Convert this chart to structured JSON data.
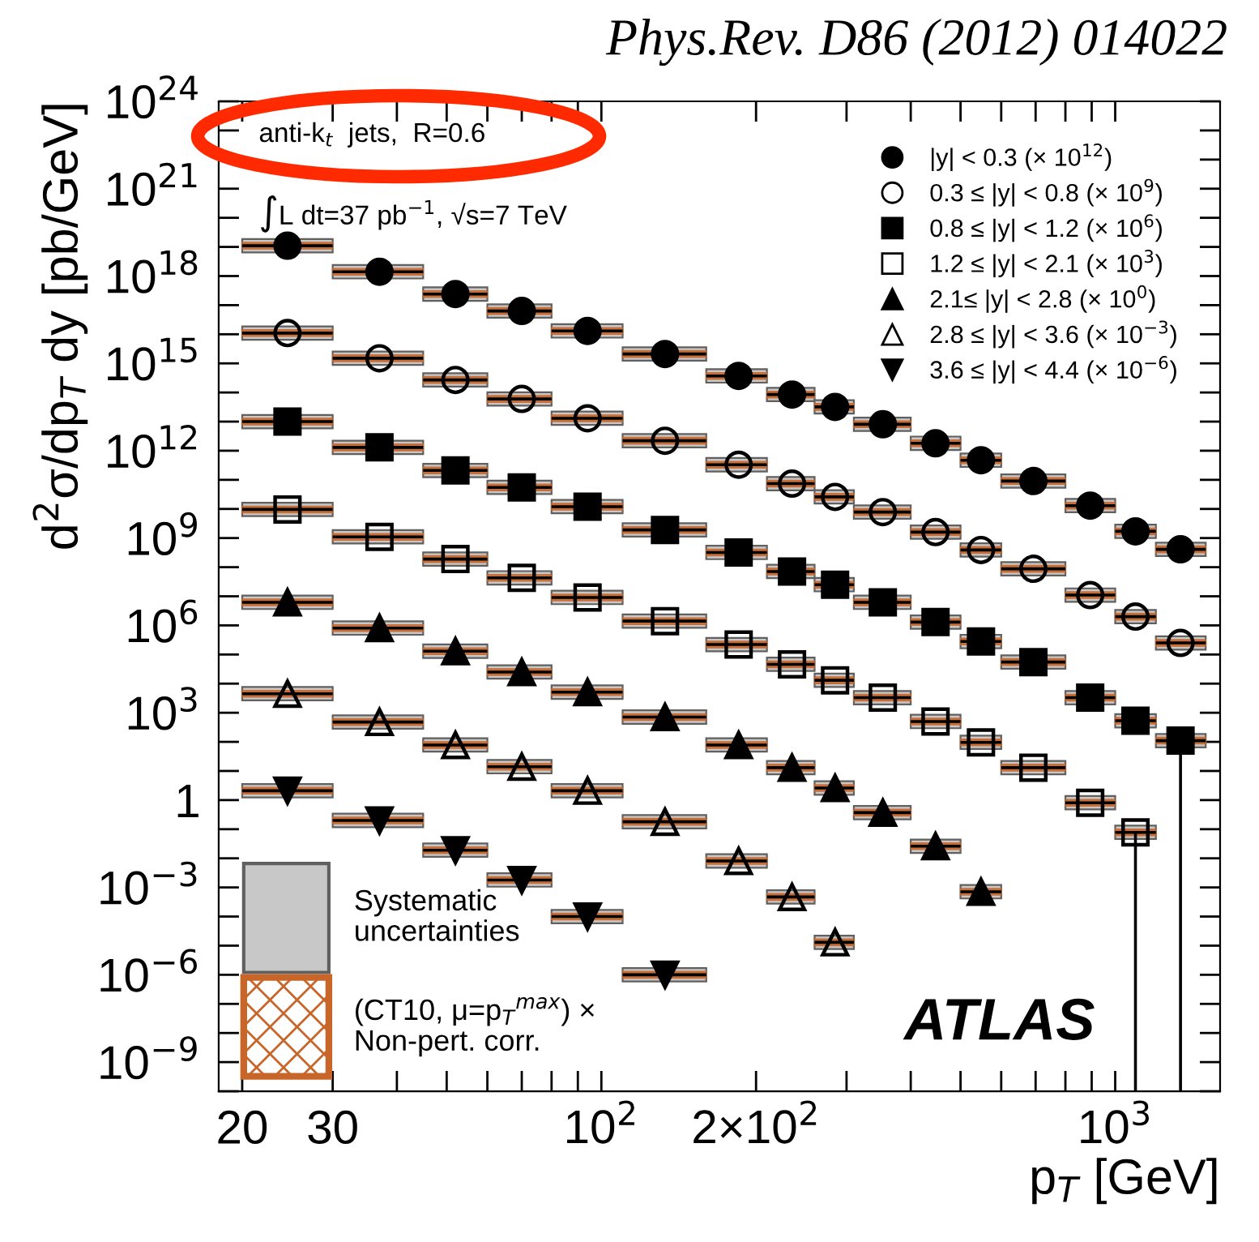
{
  "chart_data": {
    "type": "scatter",
    "title": "Phys.Rev. D86 (2012) 014022",
    "xlabel": "p$_{T}$ [GeV]",
    "ylabel": "d$^{2}$σ/dp$_{T}$ dy [pb/GeV]",
    "annotations": [
      "anti-k$_{t}$  jets,  R=0.6",
      "∫L dt=37 pb$^{−1}$, √s=7 TeV",
      "ATLAS",
      "Systematic\nuncertainties",
      "(CT10, μ=p$_{T}$$^{max}$) ×\nNon-pert. corr."
    ],
    "log": "xy",
    "legend": "top right",
    "xlim": [
      18,
      1600
    ],
    "ylim": [
      1e-10,
      1e+24
    ],
    "xticks": [
      20,
      30,
      {
        "value": 40,
        "label": null
      },
      {
        "value": 50,
        "label": null
      },
      {
        "value": 60,
        "label": null
      },
      {
        "value": 70,
        "label": null
      },
      {
        "value": 80,
        "label": null
      },
      {
        "value": 90,
        "label": null
      },
      {
        "value": 100,
        "label": "10$^{2}$"
      },
      {
        "value": 200,
        "label": "2×10$^{2}$"
      },
      {
        "value": 300,
        "label": null
      },
      {
        "value": 400,
        "label": null
      },
      {
        "value": 500,
        "label": null
      },
      {
        "value": 600,
        "label": null
      },
      {
        "value": 700,
        "label": null
      },
      {
        "value": 800,
        "label": null
      },
      {
        "value": 900,
        "label": null
      },
      {
        "value": 1000,
        "label": "10$^{3}$"
      }
    ],
    "yticks": [
      {
        "value": 1e-10,
        "label": null
      },
      {
        "value": 1e-09,
        "label": "10$^{−9}$"
      },
      {
        "value": 1e-08,
        "label": null
      },
      {
        "value": 1e-07,
        "label": null
      },
      {
        "value": 1e-06,
        "label": "10$^{−6}$"
      },
      {
        "value": 1e-05,
        "label": null
      },
      {
        "value": 0.0001,
        "label": null
      },
      {
        "value": 0.001,
        "label": "10$^{−3}$"
      },
      {
        "value": 0.01,
        "label": null
      },
      {
        "value": 0.1,
        "label": null
      },
      1,
      {
        "value": 10.0,
        "label": null
      },
      {
        "value": 100.0,
        "label": null
      },
      {
        "value": 1000.0,
        "label": "10$^{3}$"
      },
      {
        "value": 10000.0,
        "label": null
      },
      {
        "value": 100000.0,
        "label": null
      },
      {
        "value": 1000000.0,
        "label": "10$^{6}$"
      },
      {
        "value": 10000000.0,
        "label": null
      },
      {
        "value": 100000000.0,
        "label": null
      },
      {
        "value": 1000000000.0,
        "label": "10$^{9}$"
      },
      {
        "value": 10000000000.0,
        "label": null
      },
      {
        "value": 100000000000.0,
        "label": null
      },
      {
        "value": 1000000000000.0,
        "label": "10$^{12}$"
      },
      {
        "value": 10000000000000.0,
        "label": null
      },
      {
        "value": 100000000000000.0,
        "label": null
      },
      {
        "value": 1000000000000000.0,
        "label": "10$^{15}$"
      },
      {
        "value": 1e+16,
        "label": null
      },
      {
        "value": 1e+17,
        "label": null
      },
      {
        "value": 1e+18,
        "label": "10$^{18}$"
      },
      {
        "value": 1e+19,
        "label": null
      },
      {
        "value": 1e+20,
        "label": null
      },
      {
        "value": 1e+21,
        "label": "10$^{21}$"
      },
      {
        "value": 1e+22,
        "label": null
      },
      {
        "value": 1e+23,
        "label": null
      },
      {
        "value": 1e+24,
        "label": "10$^{24}$"
      }
    ],
    "series": [
      {
        "name": "|y| < 0.3 (× 10$^{12}$)",
        "marker": "circle",
        "color": "#000000",
        "x": [
          24.5,
          37,
          52,
          70,
          94,
          133,
          185,
          235,
          285,
          353,
          447,
          548,
          693,
          894,
          1095,
          1340
        ],
        "xerrors": [
          [
            20,
            30
          ],
          [
            30,
            45
          ],
          [
            45,
            60
          ],
          [
            60,
            80
          ],
          [
            80,
            110
          ],
          [
            110,
            160
          ],
          [
            160,
            210
          ],
          [
            210,
            260
          ],
          [
            260,
            310
          ],
          [
            310,
            400
          ],
          [
            400,
            500
          ],
          [
            500,
            600
          ],
          [
            600,
            800
          ],
          [
            800,
            1000
          ],
          [
            1000,
            1200
          ],
          [
            1200,
            1500
          ]
        ],
        "values": [
          1.1e+19,
          1.4e+18,
          2.4e+17,
          6.3e+16,
          1.3e+16,
          2100000000000000.0,
          370000000000000.0,
          85000000000000.0,
          32000000000000.0,
          8100000000000.0,
          1800000000000.0,
          470000000000.0,
          91000000000.0,
          13000000000.0,
          1700000000.0,
          410000000.0
        ]
      },
      {
        "name": "0.3 ≤ |y| < 0.8 (× 10$^{9}$)",
        "marker": "circle-open",
        "color": "#000000",
        "x": [
          24.5,
          37,
          52,
          70,
          94,
          133,
          185,
          235,
          285,
          353,
          447,
          548,
          693,
          894,
          1095,
          1340
        ],
        "xerrors": [
          [
            20,
            30
          ],
          [
            30,
            45
          ],
          [
            45,
            60
          ],
          [
            60,
            80
          ],
          [
            80,
            110
          ],
          [
            110,
            160
          ],
          [
            160,
            210
          ],
          [
            210,
            260
          ],
          [
            260,
            310
          ],
          [
            310,
            400
          ],
          [
            400,
            500
          ],
          [
            500,
            600
          ],
          [
            600,
            800
          ],
          [
            800,
            1000
          ],
          [
            1000,
            1200
          ],
          [
            1200,
            1500
          ]
        ],
        "values": [
          1.1e+16,
          1500000000000000.0,
          270000000000000.0,
          60000000000000.0,
          13000000000000.0,
          2200000000000.0,
          330000000000.0,
          74000000000.0,
          26000000000.0,
          7800000000.0,
          1600000000.0,
          390000000.0,
          88000000.0,
          11000000.0,
          2000000.0,
          250000.0
        ]
      },
      {
        "name": "0.8 ≤ |y| < 1.2 (× 10$^{6}$)",
        "marker": "square",
        "color": "#000000",
        "x": [
          24.5,
          37,
          52,
          70,
          94,
          133,
          185,
          235,
          285,
          353,
          447,
          548,
          693,
          894,
          1095,
          1340
        ],
        "xerrors": [
          [
            20,
            30
          ],
          [
            30,
            45
          ],
          [
            45,
            60
          ],
          [
            60,
            80
          ],
          [
            80,
            110
          ],
          [
            110,
            160
          ],
          [
            160,
            210
          ],
          [
            210,
            260
          ],
          [
            260,
            310
          ],
          [
            310,
            400
          ],
          [
            400,
            500
          ],
          [
            500,
            600
          ],
          [
            600,
            800
          ],
          [
            800,
            1000
          ],
          [
            1000,
            1200
          ],
          [
            1200,
            1500
          ]
        ],
        "values": [
          10000000000000.0,
          1300000000000.0,
          210000000000.0,
          55000000000.0,
          12000000000.0,
          1900000000.0,
          320000000.0,
          71000000.0,
          25000000.0,
          6200000.0,
          1300000.0,
          280000.0,
          55000.0,
          3300.0,
          530.0,
          110.0
        ],
        "errors": [
          null,
          null,
          null,
          null,
          null,
          null,
          null,
          null,
          null,
          null,
          null,
          null,
          null,
          null,
          null,
          [
            1e-10,
            110.0
          ]
        ]
      },
      {
        "name": "1.2 ≤ |y| < 2.1 (× 10$^{3}$)",
        "marker": "square-open",
        "color": "#000000",
        "x": [
          24.5,
          37,
          52,
          70,
          94,
          133,
          185,
          235,
          285,
          353,
          447,
          548,
          693,
          894,
          1095
        ],
        "xerrors": [
          [
            20,
            30
          ],
          [
            30,
            45
          ],
          [
            45,
            60
          ],
          [
            60,
            80
          ],
          [
            80,
            110
          ],
          [
            110,
            160
          ],
          [
            160,
            210
          ],
          [
            210,
            260
          ],
          [
            260,
            310
          ],
          [
            310,
            400
          ],
          [
            400,
            500
          ],
          [
            500,
            600
          ],
          [
            600,
            800
          ],
          [
            800,
            1000
          ],
          [
            1000,
            1200
          ]
        ],
        "values": [
          9600000000.0,
          1100000000.0,
          190000000.0,
          43000000.0,
          9100000.0,
          1400000.0,
          220000.0,
          46000.0,
          13000.0,
          3300.0,
          500.0,
          96,
          13,
          0.81,
          0.078
        ],
        "errors": [
          null,
          null,
          null,
          null,
          null,
          null,
          null,
          null,
          null,
          null,
          null,
          null,
          null,
          null,
          [
            1e-10,
            0.078
          ]
        ]
      },
      {
        "name": "2.1≤ |y| < 2.8 (× 10$^{0}$)",
        "marker": "triangle",
        "color": "#000000",
        "x": [
          24.5,
          37,
          52,
          70,
          94,
          133,
          185,
          235,
          285,
          353,
          447,
          548
        ],
        "xerrors": [
          [
            20,
            30
          ],
          [
            30,
            45
          ],
          [
            45,
            60
          ],
          [
            60,
            80
          ],
          [
            80,
            110
          ],
          [
            110,
            160
          ],
          [
            160,
            210
          ],
          [
            210,
            260
          ],
          [
            260,
            310
          ],
          [
            310,
            400
          ],
          [
            400,
            500
          ],
          [
            500,
            600
          ]
        ],
        "values": [
          6200000.0,
          810000.0,
          130000.0,
          25000.0,
          5100.0,
          710.0,
          78,
          13,
          2.6,
          0.37,
          0.026,
          0.00071
        ]
      },
      {
        "name": "2.8 ≤ |y| < 3.6 (× 10$^{−3}$)",
        "marker": "triangle-open",
        "color": "#000000",
        "x": [
          24.5,
          37,
          52,
          70,
          94,
          133,
          185,
          235,
          285
        ],
        "xerrors": [
          [
            20,
            30
          ],
          [
            30,
            45
          ],
          [
            45,
            60
          ],
          [
            60,
            80
          ],
          [
            80,
            110
          ],
          [
            110,
            160
          ],
          [
            160,
            210
          ],
          [
            210,
            260
          ],
          [
            260,
            310
          ]
        ],
        "values": [
          4500.0,
          480.0,
          78,
          14,
          2.1,
          0.18,
          0.0081,
          0.00047,
          1.3e-05
        ]
      },
      {
        "name": "3.6 ≤ |y| < 4.4 (× 10$^{−6}$)",
        "marker": "triangle-down",
        "color": "#000000",
        "x": [
          24.5,
          37,
          52,
          70,
          94,
          133
        ],
        "xerrors": [
          [
            20,
            30
          ],
          [
            30,
            45
          ],
          [
            45,
            60
          ],
          [
            60,
            80
          ],
          [
            80,
            110
          ],
          [
            110,
            160
          ]
        ],
        "values": [
          2.1,
          0.2,
          0.019,
          0.0018,
          0.0001,
          1e-06
        ]
      }
    ]
  }
}
